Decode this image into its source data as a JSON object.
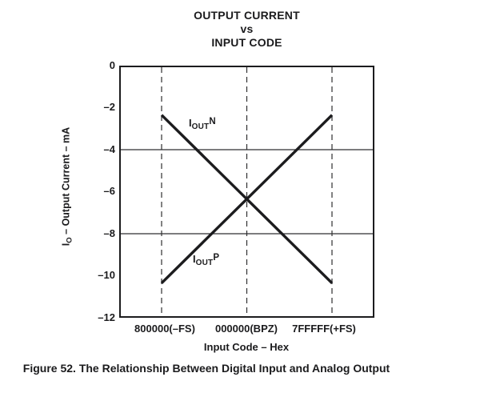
{
  "title": {
    "line1": "OUTPUT CURRENT",
    "line2": "vs",
    "line3": "INPUT CODE"
  },
  "caption": "Figure 52. The Relationship Between Digital Input and Analog Output",
  "chart_data": {
    "type": "line",
    "title": "OUTPUT CURRENT vs INPUT CODE",
    "xlabel": "Input Code – Hex",
    "ylabel": "IO – Output Current – mA",
    "ylabel_parts": {
      "base": "I",
      "sub": "O",
      "rest": " – Output Current – mA"
    },
    "x_categories": [
      "800000(–FS)",
      "000000(BPZ)",
      "7FFFFF(+FS)"
    ],
    "ylim": [
      -12,
      0
    ],
    "ytick_values": [
      0,
      -2,
      -4,
      -6,
      -8,
      -10,
      -12
    ],
    "ytick_labels": [
      "0",
      "–2",
      "–4",
      "–6",
      "–8",
      "–10",
      "–12"
    ],
    "solid_gridlines_y": [
      -4,
      -8
    ],
    "dashed_gridline_indices": [
      0,
      1,
      2
    ],
    "grid_on": true,
    "legend_position": "inline-labels",
    "line_color": "#1c1c1e",
    "grid_color": "#2e2e30",
    "series": [
      {
        "name": "IOUTN",
        "label_parts": {
          "base": "I",
          "sub": "OUT",
          "sup": "N"
        },
        "values": [
          -2.35,
          -6.35,
          -10.35
        ]
      },
      {
        "name": "IOUTP",
        "label_parts": {
          "base": "I",
          "sub": "OUT",
          "sup": "P"
        },
        "values": [
          -10.35,
          -6.35,
          -2.35
        ]
      }
    ]
  }
}
